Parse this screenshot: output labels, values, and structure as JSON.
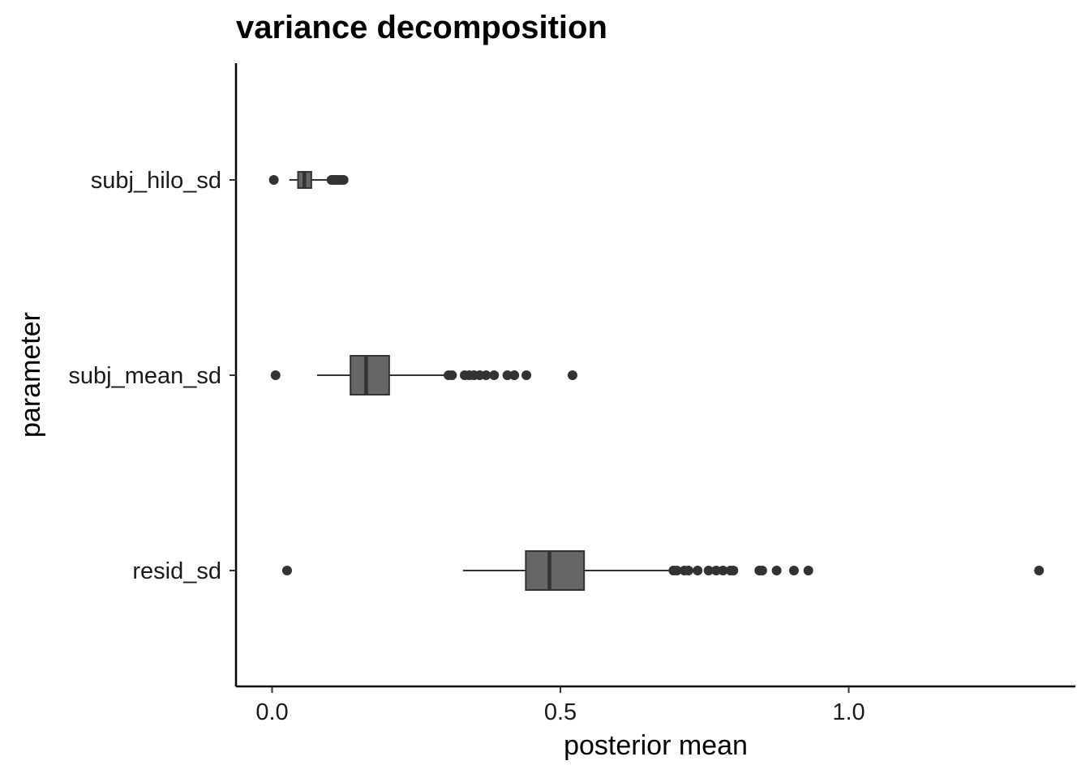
{
  "chart_data": {
    "type": "boxplot",
    "title": "variance decomposition",
    "xlabel": "posterior mean",
    "ylabel": "parameter",
    "xlim": [
      -0.065,
      1.39
    ],
    "xticks": [
      0.0,
      0.5,
      1.0
    ],
    "xtick_labels": [
      "0.0",
      "0.5",
      "1.0"
    ],
    "orientation": "horizontal",
    "grid": false,
    "box_fill": "#666666",
    "box_stroke": "#333333",
    "categories": [
      "subj_hilo_sd",
      "subj_mean_sd",
      "resid_sd"
    ],
    "boxes": [
      {
        "name": "subj_hilo_sd",
        "whisker_low": 0.03,
        "q1": 0.045,
        "median": 0.056,
        "q3": 0.068,
        "whisker_high": 0.1,
        "outliers": [
          0.003,
          0.103,
          0.106,
          0.109,
          0.112,
          0.116,
          0.12,
          0.124
        ]
      },
      {
        "name": "subj_mean_sd",
        "whisker_low": 0.078,
        "q1": 0.136,
        "median": 0.163,
        "q3": 0.203,
        "whisker_high": 0.305,
        "outliers": [
          0.006,
          0.306,
          0.312,
          0.334,
          0.342,
          0.35,
          0.36,
          0.371,
          0.385,
          0.408,
          0.42,
          0.441,
          0.521
        ]
      },
      {
        "name": "resid_sd",
        "whisker_low": 0.331,
        "q1": 0.44,
        "median": 0.481,
        "q3": 0.541,
        "whisker_high": 0.695,
        "outliers": [
          0.026,
          0.696,
          0.702,
          0.715,
          0.722,
          0.738,
          0.757,
          0.77,
          0.782,
          0.795,
          0.8,
          0.845,
          0.85,
          0.875,
          0.905,
          0.93,
          1.33
        ]
      }
    ]
  }
}
